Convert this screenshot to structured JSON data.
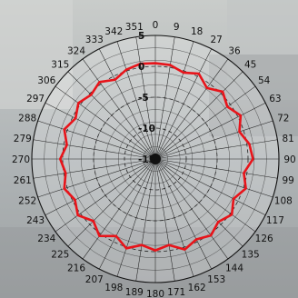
{
  "chart_data": {
    "type": "line",
    "projection": "polar",
    "title": "",
    "theta_direction": "clockwise",
    "theta_zero": "top",
    "theta_ticks": [
      0,
      9,
      18,
      27,
      36,
      45,
      54,
      63,
      72,
      81,
      90,
      99,
      108,
      117,
      126,
      135,
      144,
      153,
      162,
      171,
      180,
      189,
      198,
      207,
      216,
      225,
      234,
      243,
      252,
      261,
      270,
      279,
      288,
      297,
      306,
      315,
      324,
      333,
      342,
      351
    ],
    "theta_tick_labels": [
      "0",
      "9",
      "18",
      "27",
      "36",
      "45",
      "54",
      "63",
      "72",
      "81",
      "90",
      "99",
      "108",
      "117",
      "126",
      "135",
      "144",
      "153",
      "162",
      "171",
      "180",
      "189",
      "198",
      "207",
      "216",
      "225",
      "234",
      "243",
      "252",
      "261",
      "270",
      "279",
      "288",
      "297",
      "306",
      "315",
      "324",
      "333",
      "342",
      "351"
    ],
    "r_ticks": [
      5,
      0,
      -5,
      -10,
      -15
    ],
    "r_tick_labels": [
      "5",
      "0",
      "-5",
      "-10",
      "-15"
    ],
    "rlim": [
      -15,
      5
    ],
    "grid": true,
    "series": [
      {
        "color": "#e8141a",
        "theta": [
          0,
          9,
          18,
          27,
          36,
          45,
          54,
          63,
          72,
          81,
          90,
          99,
          108,
          117,
          126,
          135,
          144,
          153,
          162,
          171,
          180,
          189,
          198,
          207,
          216,
          225,
          234,
          243,
          252,
          261,
          270,
          279,
          288,
          297,
          306,
          315,
          324,
          333,
          342,
          351
        ],
        "r": [
          0.5,
          0.4,
          -0.3,
          0.5,
          -0.8,
          0.4,
          -0.6,
          0.5,
          -0.7,
          0.4,
          0.8,
          -0.5,
          0.4,
          -0.8,
          0.3,
          -0.6,
          0.3,
          -0.4,
          0.4,
          -0.9,
          -0.2,
          -0.9,
          0.2,
          -1.0,
          0.4,
          -0.8,
          0.5,
          -0.4,
          0.5,
          -0.3,
          0.4,
          -0.5,
          0.5,
          -0.5,
          0.4,
          -0.3,
          0.4,
          -0.6,
          0.2,
          0.6
        ]
      }
    ]
  }
}
